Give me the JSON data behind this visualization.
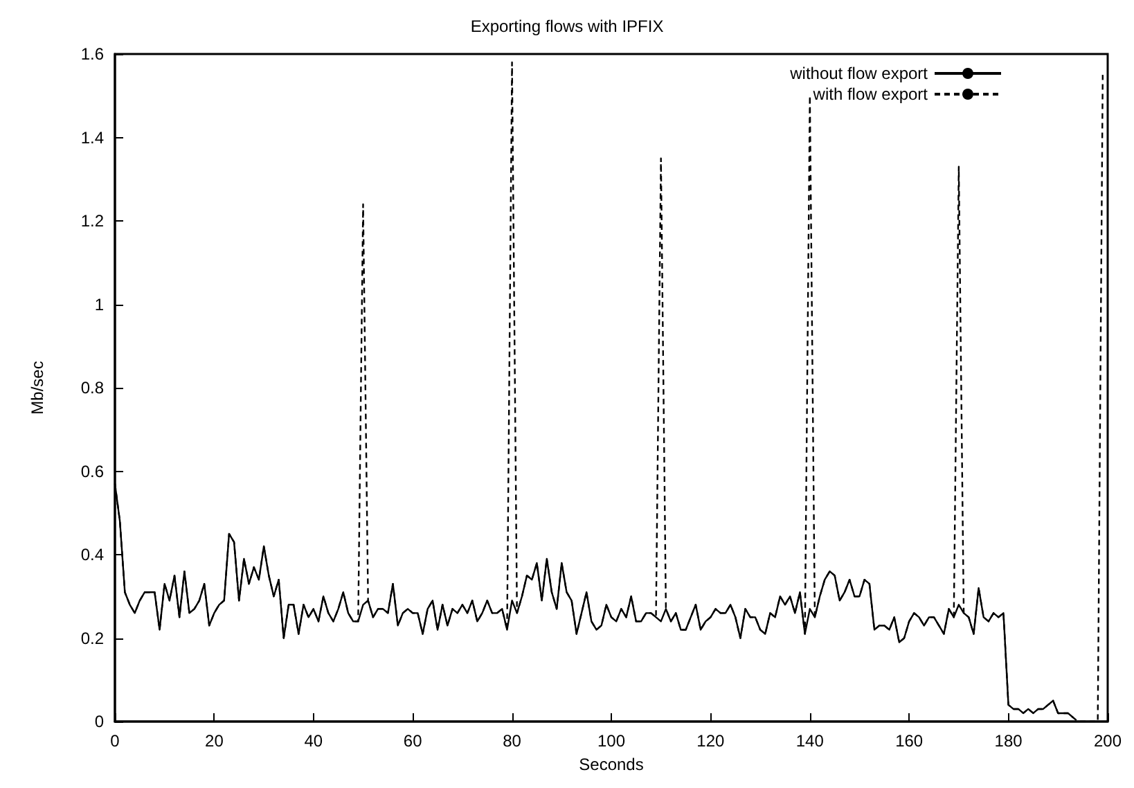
{
  "chart_data": {
    "type": "line",
    "title": "Exporting flows with IPFIX",
    "xlabel": "Seconds",
    "ylabel": "Mb/sec",
    "xlim": [
      0,
      200
    ],
    "xticks": [
      0,
      20,
      40,
      60,
      80,
      100,
      120,
      140,
      160,
      180,
      200
    ],
    "ylim": [
      0,
      1.6
    ],
    "yticks": [
      0,
      0.2,
      0.4,
      0.6,
      0.8,
      1,
      1.2,
      1.4,
      1.6
    ],
    "grid": false,
    "legend": "top right",
    "marker": "none",
    "x": [
      0,
      1,
      2,
      3,
      4,
      5,
      6,
      7,
      8,
      9,
      10,
      11,
      12,
      13,
      14,
      15,
      16,
      17,
      18,
      19,
      20,
      21,
      22,
      23,
      24,
      25,
      26,
      27,
      28,
      29,
      30,
      31,
      32,
      33,
      34,
      35,
      36,
      37,
      38,
      39,
      40,
      41,
      42,
      43,
      44,
      45,
      46,
      47,
      48,
      49,
      50,
      51,
      52,
      53,
      54,
      55,
      56,
      57,
      58,
      59,
      60,
      61,
      62,
      63,
      64,
      65,
      66,
      67,
      68,
      69,
      70,
      71,
      72,
      73,
      74,
      75,
      76,
      77,
      78,
      79,
      80,
      81,
      82,
      83,
      84,
      85,
      86,
      87,
      88,
      89,
      90,
      91,
      92,
      93,
      94,
      95,
      96,
      97,
      98,
      99,
      100,
      101,
      102,
      103,
      104,
      105,
      106,
      107,
      108,
      109,
      110,
      111,
      112,
      113,
      114,
      115,
      116,
      117,
      118,
      119,
      120,
      121,
      122,
      123,
      124,
      125,
      126,
      127,
      128,
      129,
      130,
      131,
      132,
      133,
      134,
      135,
      136,
      137,
      138,
      139,
      140,
      141,
      142,
      143,
      144,
      145,
      146,
      147,
      148,
      149,
      150,
      151,
      152,
      153,
      154,
      155,
      156,
      157,
      158,
      159,
      160,
      161,
      162,
      163,
      164,
      165,
      166,
      167,
      168,
      169,
      170,
      171,
      172,
      173,
      174,
      175,
      176,
      177,
      178,
      179,
      180,
      181,
      182,
      183,
      184,
      185,
      186,
      187,
      188,
      189,
      190,
      191,
      192,
      193,
      194,
      195,
      196,
      197,
      198,
      199
    ],
    "series": [
      {
        "name": "without flow export",
        "color": "#000000",
        "line_style": "solid",
        "values": [
          0.57,
          0.48,
          0.31,
          0.28,
          0.26,
          0.29,
          0.31,
          0.31,
          0.31,
          0.22,
          0.33,
          0.29,
          0.35,
          0.25,
          0.36,
          0.26,
          0.27,
          0.29,
          0.33,
          0.23,
          0.26,
          0.28,
          0.29,
          0.45,
          0.43,
          0.29,
          0.39,
          0.33,
          0.37,
          0.34,
          0.42,
          0.35,
          0.3,
          0.34,
          0.2,
          0.28,
          0.28,
          0.21,
          0.28,
          0.25,
          0.27,
          0.24,
          0.3,
          0.26,
          0.24,
          0.27,
          0.31,
          0.26,
          0.24,
          0.24,
          0.28,
          0.29,
          0.25,
          0.27,
          0.27,
          0.26,
          0.33,
          0.23,
          0.26,
          0.27,
          0.26,
          0.26,
          0.21,
          0.27,
          0.29,
          0.22,
          0.28,
          0.23,
          0.27,
          0.26,
          0.28,
          0.26,
          0.29,
          0.24,
          0.26,
          0.29,
          0.26,
          0.26,
          0.27,
          0.22,
          0.29,
          0.26,
          0.3,
          0.35,
          0.34,
          0.38,
          0.29,
          0.39,
          0.31,
          0.27,
          0.38,
          0.31,
          0.29,
          0.21,
          0.26,
          0.31,
          0.24,
          0.22,
          0.23,
          0.28,
          0.25,
          0.24,
          0.27,
          0.25,
          0.3,
          0.24,
          0.24,
          0.26,
          0.26,
          0.25,
          0.24,
          0.27,
          0.24,
          0.26,
          0.22,
          0.22,
          0.25,
          0.28,
          0.22,
          0.24,
          0.25,
          0.27,
          0.26,
          0.26,
          0.28,
          0.25,
          0.2,
          0.27,
          0.25,
          0.25,
          0.22,
          0.21,
          0.26,
          0.25,
          0.3,
          0.28,
          0.3,
          0.26,
          0.31,
          0.21,
          0.27,
          0.25,
          0.3,
          0.34,
          0.36,
          0.35,
          0.29,
          0.31,
          0.34,
          0.3,
          0.3,
          0.34,
          0.33,
          0.22,
          0.23,
          0.23,
          0.22,
          0.25,
          0.19,
          0.2,
          0.24,
          0.26,
          0.25,
          0.23,
          0.25,
          0.25,
          0.23,
          0.21,
          0.27,
          0.25,
          0.28,
          0.26,
          0.25,
          0.21,
          0.32,
          0.25,
          0.24,
          0.26,
          0.25,
          0.26,
          0.04,
          0.03,
          0.03,
          0.02,
          0.03,
          0.02,
          0.03,
          0.03,
          0.04,
          0.05,
          0.02,
          0.02,
          0.02,
          0.01,
          null,
          null,
          null,
          null,
          null,
          null
        ]
      },
      {
        "name": "with flow export",
        "color": "#000000",
        "line_style": "dashed",
        "values": [
          0.57,
          0.48,
          0.31,
          0.28,
          0.26,
          0.29,
          0.31,
          0.31,
          0.31,
          0.22,
          0.33,
          0.29,
          0.35,
          0.25,
          0.36,
          0.26,
          0.27,
          0.29,
          0.33,
          0.23,
          0.26,
          0.28,
          0.29,
          0.45,
          0.43,
          0.29,
          0.39,
          0.33,
          0.37,
          0.34,
          0.42,
          0.35,
          0.3,
          0.34,
          0.2,
          0.28,
          0.28,
          0.21,
          0.28,
          0.25,
          0.27,
          0.24,
          0.3,
          0.26,
          0.24,
          0.27,
          0.31,
          0.26,
          0.24,
          0.24,
          1.24,
          0.29,
          0.25,
          0.27,
          0.27,
          0.26,
          0.33,
          0.23,
          0.26,
          0.27,
          0.26,
          0.26,
          0.21,
          0.27,
          0.29,
          0.22,
          0.28,
          0.23,
          0.27,
          0.26,
          0.28,
          0.26,
          0.29,
          0.24,
          0.26,
          0.29,
          0.26,
          0.26,
          0.27,
          0.22,
          1.58,
          0.26,
          0.3,
          0.35,
          0.34,
          0.38,
          0.29,
          0.39,
          0.31,
          0.27,
          0.38,
          0.31,
          0.29,
          0.21,
          0.26,
          0.31,
          0.24,
          0.22,
          0.23,
          0.28,
          0.25,
          0.24,
          0.27,
          0.25,
          0.3,
          0.24,
          0.24,
          0.26,
          0.26,
          0.25,
          1.35,
          0.27,
          0.24,
          0.26,
          0.22,
          0.22,
          0.25,
          0.28,
          0.22,
          0.24,
          0.25,
          0.27,
          0.26,
          0.26,
          0.28,
          0.25,
          0.2,
          0.27,
          0.25,
          0.25,
          0.22,
          0.21,
          0.26,
          0.25,
          0.3,
          0.28,
          0.3,
          0.26,
          0.31,
          0.21,
          1.5,
          0.25,
          0.3,
          0.34,
          0.36,
          0.35,
          0.29,
          0.31,
          0.34,
          0.3,
          0.3,
          0.34,
          0.33,
          0.22,
          0.23,
          0.23,
          0.22,
          0.25,
          0.19,
          0.2,
          0.24,
          0.26,
          0.25,
          0.23,
          0.25,
          0.25,
          0.23,
          0.21,
          0.27,
          0.25,
          1.33,
          0.26,
          0.25,
          0.21,
          0.32,
          0.25,
          0.24,
          0.26,
          0.25,
          0.26,
          0.04,
          0.03,
          0.03,
          0.02,
          0.03,
          0.02,
          0.03,
          0.03,
          0.04,
          0.05,
          0.02,
          0.02,
          0.02,
          0.01,
          0,
          0,
          0,
          0,
          0,
          1.55
        ]
      }
    ]
  }
}
